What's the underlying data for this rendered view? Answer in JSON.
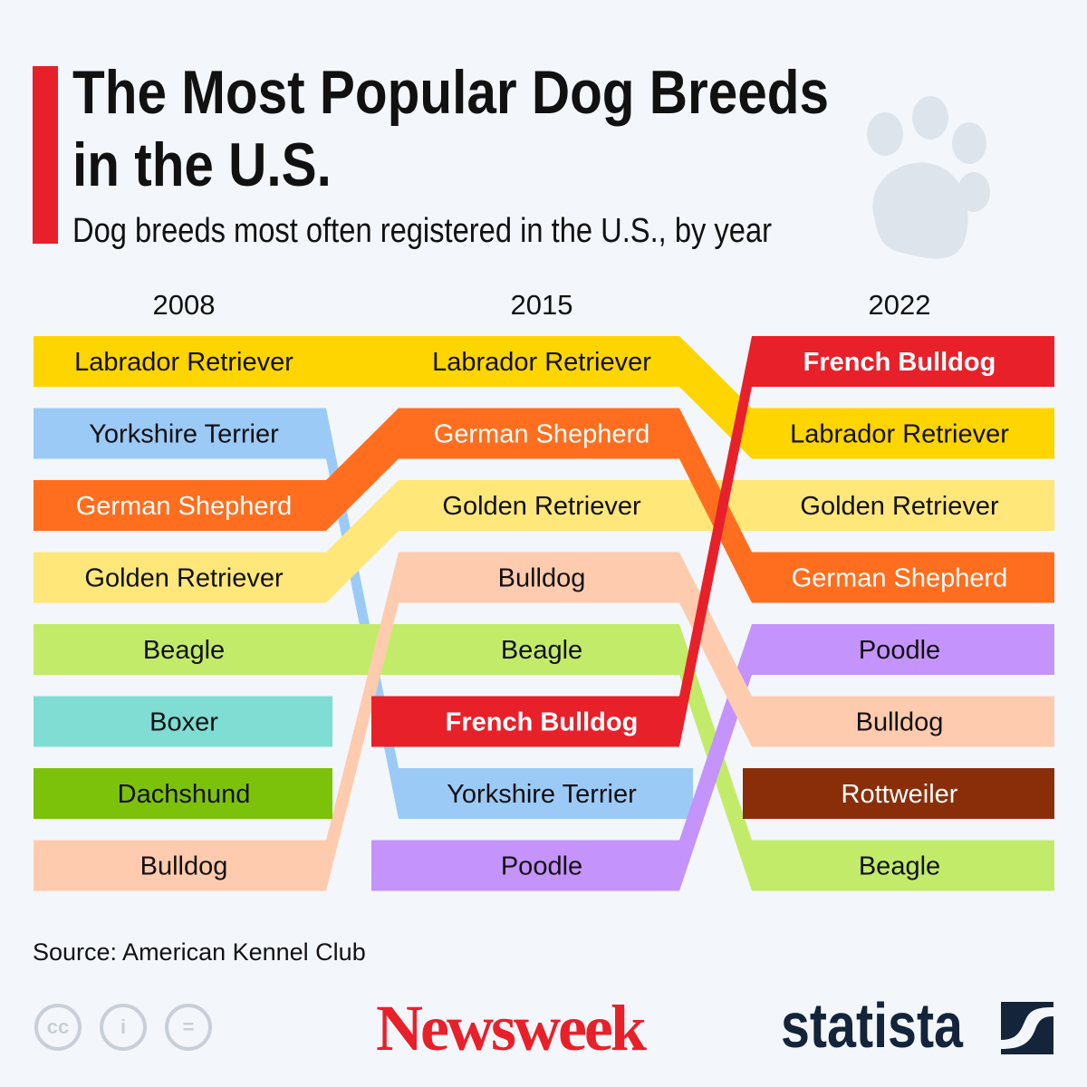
{
  "title": "The Most Popular Dog Breeds in the U.S.",
  "subtitle": "Dog breeds most often registered in the U.S., by year",
  "source": "Source: American Kennel Club",
  "logos": {
    "newsweek": "Newsweek",
    "statista": "statista",
    "license_icons": [
      "cc-icon",
      "attribution-icon",
      "no-derivatives-icon"
    ]
  },
  "colors": {
    "accent": "#e8202a",
    "background": "#f3f7fb"
  },
  "chart_data": {
    "type": "bump",
    "years": [
      "2008",
      "2015",
      "2022"
    ],
    "rankings": {
      "2008": [
        "Labrador Retriever",
        "Yorkshire Terrier",
        "German Shepherd",
        "Golden Retriever",
        "Beagle",
        "Boxer",
        "Dachshund",
        "Bulldog"
      ],
      "2015": [
        "Labrador Retriever",
        "German Shepherd",
        "Golden Retriever",
        "Bulldog",
        "Beagle",
        "French Bulldog",
        "Yorkshire Terrier",
        "Poodle"
      ],
      "2022": [
        "French Bulldog",
        "Labrador Retriever",
        "Golden Retriever",
        "German Shepherd",
        "Poodle",
        "Bulldog",
        "Rottweiler",
        "Beagle"
      ]
    },
    "breed_colors": {
      "Labrador Retriever": "#ffd500",
      "Yorkshire Terrier": "#9ccaf7",
      "German Shepherd": "#ff6e1f",
      "Golden Retriever": "#ffe77a",
      "Beagle": "#c3eb6a",
      "Boxer": "#7fddd4",
      "Dachshund": "#7dc20a",
      "Bulldog": "#ffcbae",
      "French Bulldog": "#e8202a",
      "Poodle": "#c493fb",
      "Rottweiler": "#8a2e0a"
    },
    "white_text": [
      "German Shepherd",
      "French Bulldog",
      "Rottweiler"
    ],
    "bold_text": [
      "French Bulldog"
    ]
  }
}
